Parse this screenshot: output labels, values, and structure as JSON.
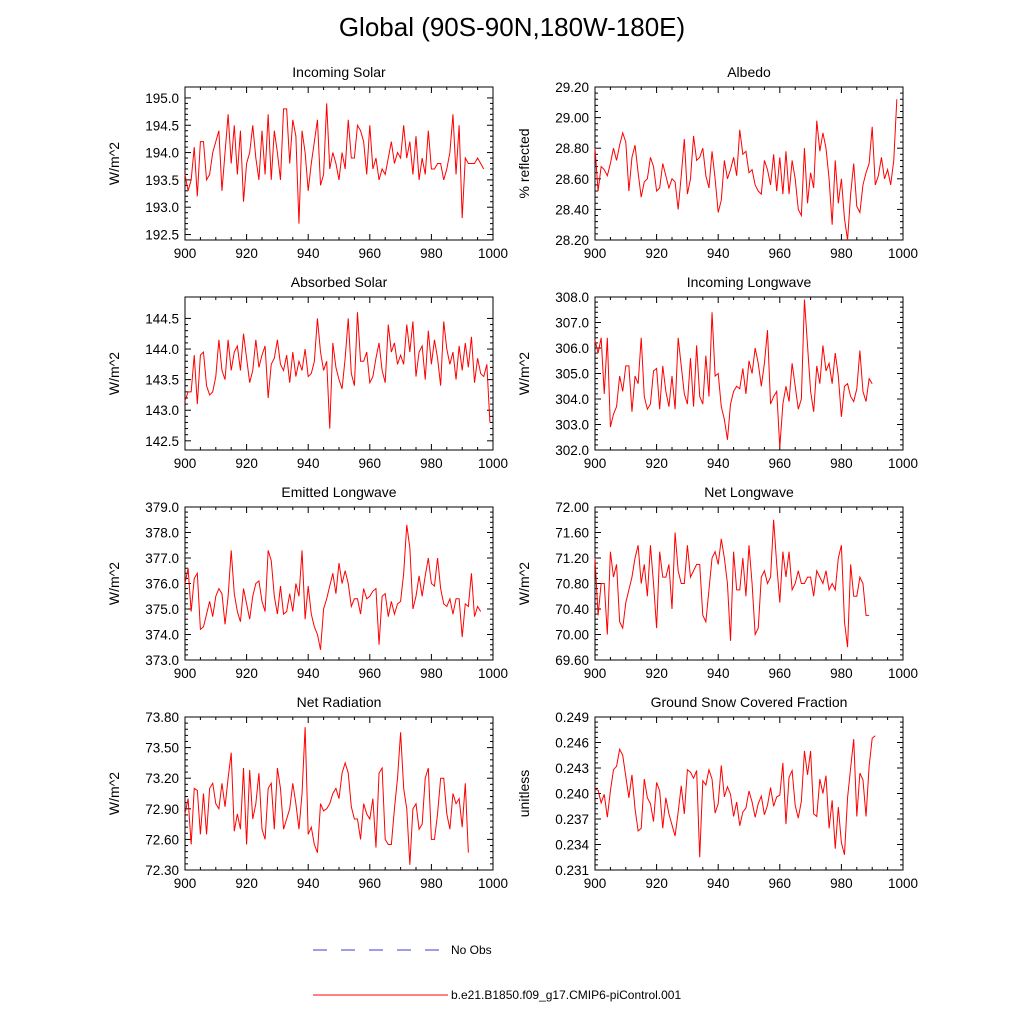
{
  "figure_title": "Global (90S-90N,180W-180E)",
  "colors": {
    "series": "#ff0000",
    "obs": "#3b3bd6",
    "axis": "#000000"
  },
  "legend": {
    "obs_label": "No Obs",
    "model_label": "b.e21.B1850.f09_g17.CMIP6-piControl.001"
  },
  "chart_data": [
    {
      "type": "line",
      "title": "Incoming Solar",
      "ylabel": "W/m^2",
      "xlim": [
        900,
        1000
      ],
      "ylim": [
        192.4,
        195.2
      ],
      "xticks": [
        "900",
        "920",
        "940",
        "960",
        "980",
        "1000"
      ],
      "yticks": [
        192.5,
        193.0,
        193.5,
        194.0,
        194.5,
        195.0
      ],
      "ytick_labels": [
        "192.5",
        "193.0",
        "193.5",
        "194.0",
        "194.5",
        "195.0"
      ],
      "x_start": 900,
      "x_step": 1,
      "values": [
        193.6,
        193.3,
        193.5,
        194.1,
        193.2,
        194.2,
        194.2,
        193.5,
        193.6,
        194.0,
        194.2,
        194.4,
        193.3,
        194.0,
        194.7,
        193.8,
        194.5,
        193.6,
        194.4,
        193.1,
        193.8,
        194.0,
        194.5,
        193.9,
        193.5,
        194.4,
        193.6,
        194.7,
        193.5,
        194.4,
        194.0,
        193.5,
        194.8,
        194.8,
        193.8,
        194.6,
        194.3,
        192.7,
        194.4,
        194.0,
        193.3,
        193.8,
        194.2,
        194.6,
        193.4,
        193.6,
        194.9,
        193.7,
        194.0,
        193.8,
        193.5,
        194.0,
        193.7,
        194.6,
        193.9,
        193.9,
        194.5,
        194.4,
        194.2,
        193.6,
        194.5,
        193.7,
        193.9,
        193.5,
        193.7,
        193.6,
        193.9,
        194.2,
        193.8,
        194.0,
        193.9,
        194.5,
        193.9,
        194.2,
        193.6,
        194.3,
        193.5,
        193.9,
        193.6,
        194.4,
        193.7,
        193.7,
        193.8,
        193.8,
        193.5,
        193.7,
        194.0,
        194.7,
        193.6,
        194.5,
        192.8,
        193.9,
        193.8,
        193.8,
        193.8,
        193.9,
        193.8,
        193.7
      ]
    },
    {
      "type": "line",
      "title": "Albedo",
      "ylabel": "% reflected",
      "xlim": [
        900,
        1000
      ],
      "ylim": [
        28.2,
        29.2
      ],
      "xticks": [
        "900",
        "920",
        "940",
        "960",
        "980",
        "1000"
      ],
      "yticks": [
        28.2,
        28.4,
        28.6,
        28.8,
        29.0,
        29.2
      ],
      "ytick_labels": [
        "28.20",
        "28.40",
        "28.60",
        "28.80",
        "29.00",
        "29.20"
      ],
      "x_start": 900,
      "x_step": 1,
      "values": [
        28.8,
        28.52,
        28.68,
        28.66,
        28.62,
        28.7,
        28.8,
        28.72,
        28.82,
        28.9,
        28.84,
        28.52,
        28.74,
        28.82,
        28.64,
        28.48,
        28.58,
        28.6,
        28.74,
        28.68,
        28.52,
        28.54,
        28.7,
        28.62,
        28.54,
        28.6,
        28.58,
        28.4,
        28.62,
        28.86,
        28.5,
        28.6,
        28.88,
        28.72,
        28.74,
        28.8,
        28.62,
        28.54,
        28.78,
        28.6,
        28.38,
        28.46,
        28.72,
        28.6,
        28.66,
        28.74,
        28.62,
        28.92,
        28.76,
        28.78,
        28.64,
        28.66,
        28.56,
        28.52,
        28.5,
        28.72,
        28.66,
        28.56,
        28.76,
        28.52,
        28.74,
        28.5,
        28.78,
        28.5,
        28.72,
        28.6,
        28.4,
        28.36,
        28.8,
        28.44,
        28.64,
        28.54,
        28.98,
        28.78,
        28.9,
        28.8,
        28.6,
        28.3,
        28.72,
        28.44,
        28.6,
        28.34,
        28.2,
        28.5,
        28.7,
        28.42,
        28.38,
        28.56,
        28.64,
        28.7,
        28.94,
        28.56,
        28.62,
        28.74,
        28.6,
        28.66,
        28.56,
        28.72,
        29.12
      ]
    },
    {
      "type": "line",
      "title": "Absorbed Solar",
      "ylabel": "W/m^2",
      "xlim": [
        900,
        1000
      ],
      "ylim": [
        142.35,
        144.85
      ],
      "xticks": [
        "900",
        "920",
        "940",
        "960",
        "980",
        "1000"
      ],
      "yticks": [
        142.5,
        143.0,
        143.5,
        144.0,
        144.5
      ],
      "ytick_labels": [
        "142.5",
        "143.0",
        "143.5",
        "144.0",
        "144.5"
      ],
      "x_start": 900,
      "x_step": 1,
      "values": [
        143.15,
        143.3,
        143.3,
        143.9,
        143.1,
        143.9,
        143.95,
        143.4,
        143.25,
        143.3,
        143.55,
        144.15,
        143.65,
        143.5,
        144.15,
        143.65,
        143.95,
        144.05,
        143.65,
        144.25,
        143.85,
        143.45,
        143.65,
        144.15,
        143.7,
        143.9,
        144.05,
        143.2,
        143.75,
        143.85,
        144.15,
        143.75,
        143.65,
        143.9,
        143.45,
        143.95,
        143.55,
        143.8,
        143.65,
        144.0,
        143.55,
        143.6,
        143.8,
        144.5,
        143.95,
        143.65,
        143.8,
        142.7,
        144.1,
        143.7,
        143.5,
        143.35,
        143.85,
        144.5,
        143.6,
        143.4,
        144.6,
        143.8,
        143.8,
        143.95,
        143.45,
        143.55,
        143.85,
        144.1,
        143.65,
        143.45,
        144.4,
        143.95,
        144.1,
        143.75,
        143.9,
        143.75,
        144.4,
        143.95,
        144.45,
        143.55,
        143.95,
        144.05,
        143.5,
        144.3,
        143.75,
        144.15,
        143.85,
        143.4,
        144.45,
        144.0,
        143.75,
        143.95,
        143.5,
        144.05,
        143.65,
        144.1,
        143.7,
        144.2,
        143.45,
        143.85,
        143.6,
        143.55,
        143.75,
        142.8
      ]
    },
    {
      "type": "line",
      "title": "Incoming Longwave",
      "ylabel": "W/m^2",
      "xlim": [
        900,
        1000
      ],
      "ylim": [
        302.0,
        308.0
      ],
      "xticks": [
        "900",
        "920",
        "940",
        "960",
        "980",
        "1000"
      ],
      "yticks": [
        302.0,
        303.0,
        304.0,
        305.0,
        306.0,
        307.0,
        308.0
      ],
      "ytick_labels": [
        "302.0",
        "303.0",
        "304.0",
        "305.0",
        "306.0",
        "307.0",
        "308.0"
      ],
      "x_start": 900,
      "x_step": 1,
      "values": [
        306.3,
        305.8,
        306.4,
        304.2,
        306.4,
        302.9,
        303.4,
        303.7,
        304.9,
        304.3,
        305.3,
        305.3,
        303.5,
        304.9,
        304.6,
        306.4,
        304.1,
        303.6,
        303.8,
        305.1,
        305.2,
        303.6,
        305.3,
        304.3,
        303.7,
        304.9,
        303.6,
        306.4,
        305.3,
        304.2,
        303.8,
        305.6,
        303.7,
        306.1,
        304.1,
        303.8,
        305.7,
        304.1,
        307.4,
        304.9,
        305.0,
        303.7,
        303.2,
        302.4,
        303.8,
        304.3,
        304.5,
        304.4,
        305.2,
        304.2,
        305.5,
        305.0,
        306.0,
        305.4,
        304.5,
        305.4,
        306.7,
        303.8,
        304.1,
        304.3,
        302.1,
        303.8,
        304.5,
        303.9,
        305.4,
        304.5,
        303.6,
        304.0,
        307.9,
        306.1,
        304.3,
        303.5,
        305.3,
        304.6,
        306.1,
        305.1,
        305.4,
        304.6,
        305.8,
        304.9,
        303.3,
        304.5,
        304.6,
        304.1,
        303.9,
        304.4,
        305.9,
        304.3,
        303.9,
        304.8,
        304.6
      ]
    },
    {
      "type": "line",
      "title": "Emitted Longwave",
      "ylabel": "W/m^2",
      "xlim": [
        900,
        1000
      ],
      "ylim": [
        373.0,
        379.0
      ],
      "xticks": [
        "900",
        "920",
        "940",
        "960",
        "980",
        "1000"
      ],
      "yticks": [
        373.0,
        374.0,
        375.0,
        376.0,
        377.0,
        378.0,
        379.0
      ],
      "ytick_labels": [
        "373.0",
        "374.0",
        "375.0",
        "376.0",
        "377.0",
        "378.0",
        "379.0"
      ],
      "x_start": 900,
      "x_step": 1,
      "values": [
        376.0,
        376.6,
        374.9,
        376.2,
        376.4,
        374.2,
        374.3,
        374.8,
        375.3,
        374.7,
        375.5,
        375.8,
        375.6,
        374.4,
        375.5,
        377.3,
        375.6,
        374.9,
        374.5,
        375.8,
        375.2,
        374.6,
        375.5,
        376.0,
        376.1,
        375.3,
        374.9,
        377.3,
        376.9,
        375.5,
        374.8,
        375.9,
        374.8,
        374.9,
        375.6,
        374.9,
        376.0,
        375.5,
        377.3,
        374.6,
        375.9,
        374.8,
        374.3,
        374.0,
        373.4,
        375.0,
        375.4,
        375.9,
        376.4,
        375.6,
        376.8,
        376.0,
        376.5,
        376.0,
        375.1,
        375.4,
        375.4,
        374.8,
        375.8,
        375.4,
        375.5,
        375.7,
        375.8,
        373.6,
        375.5,
        375.6,
        374.7,
        375.3,
        374.8,
        375.2,
        375.3,
        376.4,
        378.3,
        377.4,
        375.0,
        375.5,
        376.3,
        375.5,
        376.3,
        377.0,
        376.0,
        375.9,
        377.0,
        375.8,
        375.2,
        375.1,
        375.4,
        374.8,
        375.4,
        375.4,
        373.9,
        375.2,
        375.1,
        376.4,
        374.7,
        375.1,
        374.9
      ]
    },
    {
      "type": "line",
      "title": "Net Longwave",
      "ylabel": "W/m^2",
      "xlim": [
        900,
        1000
      ],
      "ylim": [
        69.6,
        72.0
      ],
      "xticks": [
        "900",
        "920",
        "940",
        "960",
        "980",
        "1000"
      ],
      "yticks": [
        69.6,
        70.0,
        70.4,
        70.8,
        71.2,
        71.6,
        72.0
      ],
      "ytick_labels": [
        "69.60",
        "70.00",
        "70.40",
        "70.80",
        "71.20",
        "71.60",
        "72.00"
      ],
      "x_start": 900,
      "x_step": 1,
      "values": [
        71.2,
        70.3,
        70.8,
        70.8,
        70.0,
        71.3,
        70.9,
        71.1,
        70.2,
        70.1,
        70.5,
        70.7,
        70.9,
        71.2,
        71.4,
        70.8,
        71.1,
        70.6,
        71.4,
        70.8,
        70.1,
        71.3,
        70.9,
        70.9,
        71.1,
        70.4,
        71.6,
        71.0,
        70.8,
        70.8,
        71.4,
        70.9,
        71.0,
        71.1,
        71.1,
        70.3,
        70.2,
        70.7,
        71.2,
        71.3,
        71.1,
        71.5,
        71.2,
        70.8,
        69.9,
        71.3,
        70.7,
        70.7,
        71.2,
        70.6,
        71.4,
        70.8,
        70.0,
        70.1,
        70.9,
        71.0,
        70.8,
        70.9,
        71.8,
        71.1,
        70.5,
        71.3,
        70.9,
        71.3,
        70.7,
        70.8,
        71.0,
        70.8,
        70.8,
        70.9,
        70.9,
        70.6,
        71.0,
        70.9,
        70.8,
        71.0,
        70.7,
        70.8,
        70.7,
        71.2,
        71.4,
        70.2,
        69.8,
        71.1,
        70.6,
        70.6,
        70.9,
        70.8,
        70.3,
        70.3
      ]
    },
    {
      "type": "line",
      "title": "Net Radiation",
      "ylabel": "W/m^2",
      "xlim": [
        900,
        1000
      ],
      "ylim": [
        72.3,
        73.8
      ],
      "xticks": [
        "900",
        "920",
        "940",
        "960",
        "980",
        "1000"
      ],
      "yticks": [
        72.3,
        72.6,
        72.9,
        73.2,
        73.5,
        73.8
      ],
      "ytick_labels": [
        "72.30",
        "72.60",
        "72.90",
        "73.20",
        "73.50",
        "73.80"
      ],
      "x_start": 900,
      "x_step": 1,
      "values": [
        72.85,
        73.0,
        72.55,
        73.1,
        73.08,
        72.65,
        73.05,
        72.65,
        73.1,
        73.15,
        72.95,
        72.9,
        73.15,
        72.92,
        73.2,
        73.45,
        72.68,
        72.85,
        72.7,
        73.3,
        72.55,
        73.28,
        72.8,
        72.95,
        73.25,
        72.7,
        72.6,
        73.1,
        73.15,
        72.7,
        73.3,
        73.1,
        72.7,
        72.8,
        72.9,
        73.15,
        72.95,
        72.7,
        73.05,
        73.7,
        72.65,
        72.72,
        72.55,
        72.47,
        72.95,
        72.88,
        72.9,
        72.95,
        73.05,
        73.1,
        73.0,
        73.25,
        73.35,
        73.25,
        72.92,
        72.8,
        72.8,
        72.6,
        72.95,
        72.85,
        72.8,
        73.0,
        72.52,
        73.25,
        73.3,
        72.6,
        72.55,
        72.55,
        72.9,
        73.2,
        73.65,
        73.1,
        72.9,
        72.35,
        72.9,
        72.95,
        72.7,
        72.75,
        73.2,
        73.3,
        72.6,
        72.6,
        72.85,
        73.2,
        73.2,
        72.85,
        72.7,
        73.05,
        72.95,
        73.0,
        72.72,
        73.15,
        72.47
      ]
    },
    {
      "type": "line",
      "title": "Ground Snow Covered Fraction",
      "ylabel": "unitless",
      "xlim": [
        900,
        1000
      ],
      "ylim": [
        0.231,
        0.249
      ],
      "xticks": [
        "900",
        "920",
        "940",
        "960",
        "980",
        "1000"
      ],
      "yticks": [
        0.231,
        0.234,
        0.237,
        0.24,
        0.243,
        0.246,
        0.249
      ],
      "ytick_labels": [
        "0.231",
        "0.234",
        "0.237",
        "0.240",
        "0.243",
        "0.246",
        "0.249"
      ],
      "x_start": 900,
      "x_step": 1,
      "values": [
        0.2405,
        0.2404,
        0.2389,
        0.2399,
        0.2372,
        0.2403,
        0.2428,
        0.2432,
        0.2452,
        0.2445,
        0.242,
        0.2395,
        0.2422,
        0.2382,
        0.2356,
        0.2359,
        0.2417,
        0.2395,
        0.2388,
        0.2367,
        0.2413,
        0.2403,
        0.2359,
        0.2395,
        0.2376,
        0.2363,
        0.235,
        0.2378,
        0.2409,
        0.2376,
        0.2428,
        0.2425,
        0.2418,
        0.2427,
        0.2325,
        0.2415,
        0.241,
        0.2428,
        0.2417,
        0.2377,
        0.2388,
        0.2433,
        0.2396,
        0.2408,
        0.2399,
        0.2373,
        0.239,
        0.2362,
        0.2378,
        0.2383,
        0.2403,
        0.239,
        0.2372,
        0.2388,
        0.2397,
        0.2375,
        0.2386,
        0.2407,
        0.2385,
        0.2396,
        0.2398,
        0.2436,
        0.2364,
        0.2419,
        0.2427,
        0.2386,
        0.2371,
        0.2391,
        0.245,
        0.2422,
        0.245,
        0.2376,
        0.2373,
        0.2417,
        0.24,
        0.2421,
        0.2359,
        0.2392,
        0.2335,
        0.2384,
        0.2342,
        0.2328,
        0.2395,
        0.243,
        0.2464,
        0.2373,
        0.2424,
        0.2416,
        0.2373,
        0.2432,
        0.2465,
        0.2468
      ]
    }
  ]
}
